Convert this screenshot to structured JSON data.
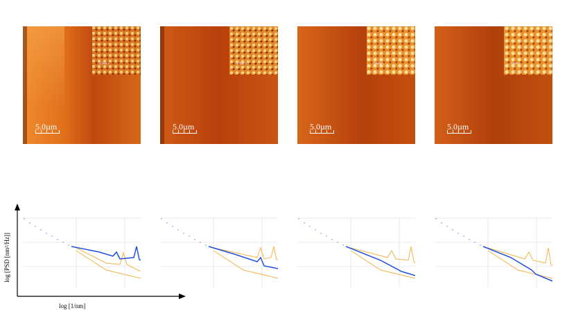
{
  "afm_panels": [
    {
      "scale_label": "5.0µm",
      "inset_label": "500nm"
    },
    {
      "scale_label": "5.0µm",
      "inset_label": "500nm"
    },
    {
      "scale_label": "5.0µm",
      "inset_label": "500nm"
    },
    {
      "scale_label": "5.0µm",
      "inset_label": "500nm"
    }
  ],
  "axes": {
    "ylabel": "log [PSD [nm²/Hz]]",
    "xlabel": "log [1/nm]"
  },
  "colors": {
    "blue_series": "#1f4fe0",
    "orange_series": "#f2b447",
    "afm_dark": "#8a2a06",
    "afm_light": "#f7a54b"
  }
}
